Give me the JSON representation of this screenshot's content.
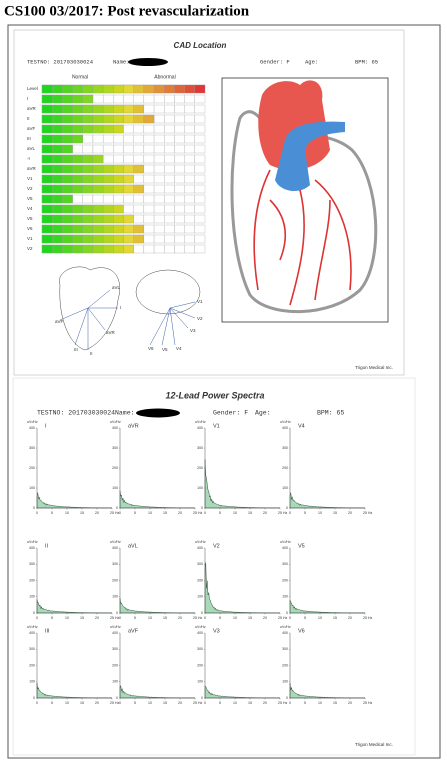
{
  "title": "CS100 03/2017: Post revascularization",
  "cad": {
    "heading": "CAD Location",
    "header": {
      "testno": "TESTNO: 201703030024",
      "name": "Name:",
      "gender": "Gender: F",
      "age": "Age:",
      "bpm": "BPM: 65"
    },
    "legend": {
      "normal": "Normal",
      "abnormal": "Abnormal"
    },
    "cells": 16,
    "rows": [
      {
        "label": "Level",
        "filled": 16
      },
      {
        "label": "I",
        "filled": 5
      },
      {
        "label": "aVR",
        "filled": 10
      },
      {
        "label": "II",
        "filled": 11
      },
      {
        "label": "aVF",
        "filled": 8
      },
      {
        "label": "III",
        "filled": 4
      },
      {
        "label": "aVL",
        "filled": 3
      },
      {
        "label": "-I",
        "filled": 6
      },
      {
        "label": "aVR",
        "filled": 10
      },
      {
        "label": "V1",
        "filled": 9
      },
      {
        "label": "V2",
        "filled": 10
      },
      {
        "label": "V5",
        "filled": 3
      },
      {
        "label": "V4",
        "filled": 8
      },
      {
        "label": "V5",
        "filled": 9
      },
      {
        "label": "V6",
        "filled": 10
      },
      {
        "label": "V1",
        "filled": 10
      },
      {
        "label": "V2",
        "filled": 9
      }
    ],
    "limb_leads": [
      "aVL",
      "I",
      "aVR",
      "II",
      "III",
      "aVF"
    ],
    "chest_leads": [
      "V1",
      "V2",
      "V3",
      "V4",
      "V5",
      "V6"
    ],
    "footer": "Trigon Medical Inc."
  },
  "spectra": {
    "heading": "12-Lead Power Spectra",
    "header": {
      "testno": "TESTNO: 201703030024",
      "name": "Name:",
      "gender": "Gender: F",
      "age": "Age:",
      "bpm": "BPM: 65"
    },
    "y_unit": "uV²/Hz",
    "x_unit": "Hz",
    "yticks": [
      0,
      100,
      200,
      300,
      400
    ],
    "xticks": [
      0,
      5,
      10,
      15,
      20,
      25
    ],
    "panels": [
      "I",
      "aVR",
      "V1",
      "V4",
      "II",
      "aVL",
      "V2",
      "V5",
      "III",
      "aVF",
      "V3",
      "V6"
    ],
    "footer": "Trigon Medical Inc."
  }
}
